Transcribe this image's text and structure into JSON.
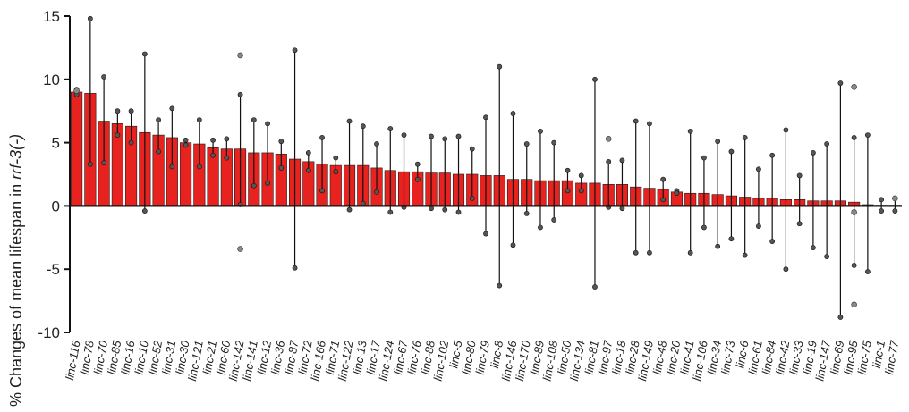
{
  "chart_data": {
    "type": "bar",
    "ylabel_pre": "% Changes of mean lifespan in ",
    "ylabel_gene": "rrf-3(-)",
    "ylim": [
      -10,
      15
    ],
    "yticks": [
      "15",
      "10",
      "5",
      "0",
      "-5",
      "-10"
    ],
    "bar_color": "#e8231f",
    "categories": [
      "linc-116",
      "linc-78",
      "linc-70",
      "linc-85",
      "linc-16",
      "linc-10",
      "linc-52",
      "linc-31",
      "linc-30",
      "linc-121",
      "linc-21",
      "linc-60",
      "linc-142",
      "linc-141",
      "linc-12",
      "linc-36",
      "linc-87",
      "linc-72",
      "linc-166",
      "linc-71",
      "linc-122",
      "linc-13",
      "linc-17",
      "linc-124",
      "linc-67",
      "linc-76",
      "linc-88",
      "linc-102",
      "linc-5",
      "linc-80",
      "linc-79",
      "linc-8",
      "linc-146",
      "linc-170",
      "linc-89",
      "linc-108",
      "linc-50",
      "linc-134",
      "linc-81",
      "linc-97",
      "linc-18",
      "linc-28",
      "linc-149",
      "linc-48",
      "linc-20",
      "linc-41",
      "linc-106",
      "linc-34",
      "linc-73",
      "linc-6",
      "linc-61",
      "linc-84",
      "linc-42",
      "linc-33",
      "linc-19",
      "linc-147",
      "linc-69",
      "linc-95",
      "linc-75",
      "linc-1",
      "linc-77"
    ],
    "values": [
      9.0,
      8.9,
      6.7,
      6.5,
      6.3,
      5.8,
      5.6,
      5.4,
      5.0,
      4.9,
      4.6,
      4.5,
      4.5,
      4.2,
      4.2,
      4.1,
      3.7,
      3.5,
      3.3,
      3.2,
      3.2,
      3.2,
      3.0,
      2.8,
      2.7,
      2.7,
      2.6,
      2.6,
      2.5,
      2.5,
      2.4,
      2.4,
      2.1,
      2.1,
      2.0,
      2.0,
      2.0,
      1.8,
      1.8,
      1.7,
      1.7,
      1.5,
      1.4,
      1.3,
      1.1,
      1.0,
      1.0,
      0.9,
      0.8,
      0.7,
      0.6,
      0.6,
      0.5,
      0.5,
      0.4,
      0.4,
      0.4,
      0.3,
      0.1,
      0.05,
      0.05
    ],
    "err_high": [
      9.2,
      14.8,
      10.2,
      7.5,
      7.5,
      12.0,
      6.8,
      7.7,
      5.2,
      6.8,
      5.2,
      5.3,
      8.8,
      6.8,
      6.5,
      5.1,
      12.3,
      4.2,
      5.4,
      3.8,
      6.7,
      6.3,
      4.9,
      6.1,
      5.6,
      3.3,
      5.5,
      5.3,
      5.5,
      4.5,
      7.0,
      11.0,
      7.3,
      4.9,
      5.9,
      5.0,
      2.8,
      2.4,
      10.0,
      3.5,
      3.6,
      6.7,
      6.5,
      2.1,
      1.2,
      5.9,
      3.8,
      5.1,
      4.3,
      5.4,
      2.9,
      4.0,
      6.0,
      2.4,
      4.2,
      4.9,
      9.7,
      5.4,
      5.6,
      0.5,
      0.6
    ],
    "err_low": [
      8.8,
      3.3,
      3.4,
      5.6,
      5.0,
      -0.4,
      4.3,
      3.1,
      4.8,
      3.1,
      4.0,
      3.8,
      0.1,
      1.6,
      1.8,
      3.0,
      -4.9,
      2.8,
      1.2,
      2.7,
      -0.3,
      0.2,
      1.1,
      -0.5,
      -0.1,
      2.1,
      -0.2,
      -0.3,
      -0.5,
      0.6,
      -2.2,
      -6.3,
      -3.1,
      -0.6,
      -1.7,
      -1.1,
      1.2,
      1.2,
      -6.4,
      -0.1,
      -0.2,
      -3.7,
      -3.7,
      0.5,
      1.0,
      -3.7,
      -1.7,
      -3.2,
      -2.6,
      -3.9,
      -1.6,
      -2.8,
      -5.0,
      -1.4,
      -3.3,
      -4.0,
      -8.8,
      -4.7,
      -5.2,
      -0.4,
      -0.4
    ],
    "outlier_points": [
      {
        "category": "linc-116",
        "y": 9.1
      },
      {
        "category": "linc-142",
        "y": 11.9
      },
      {
        "category": "linc-142",
        "y": -3.4
      },
      {
        "category": "linc-97",
        "y": 5.3
      },
      {
        "category": "linc-95",
        "y": 9.4
      },
      {
        "category": "linc-95",
        "y": -7.8
      },
      {
        "category": "linc-95",
        "y": -0.5
      },
      {
        "category": "linc-77",
        "y": 0.6
      }
    ]
  }
}
